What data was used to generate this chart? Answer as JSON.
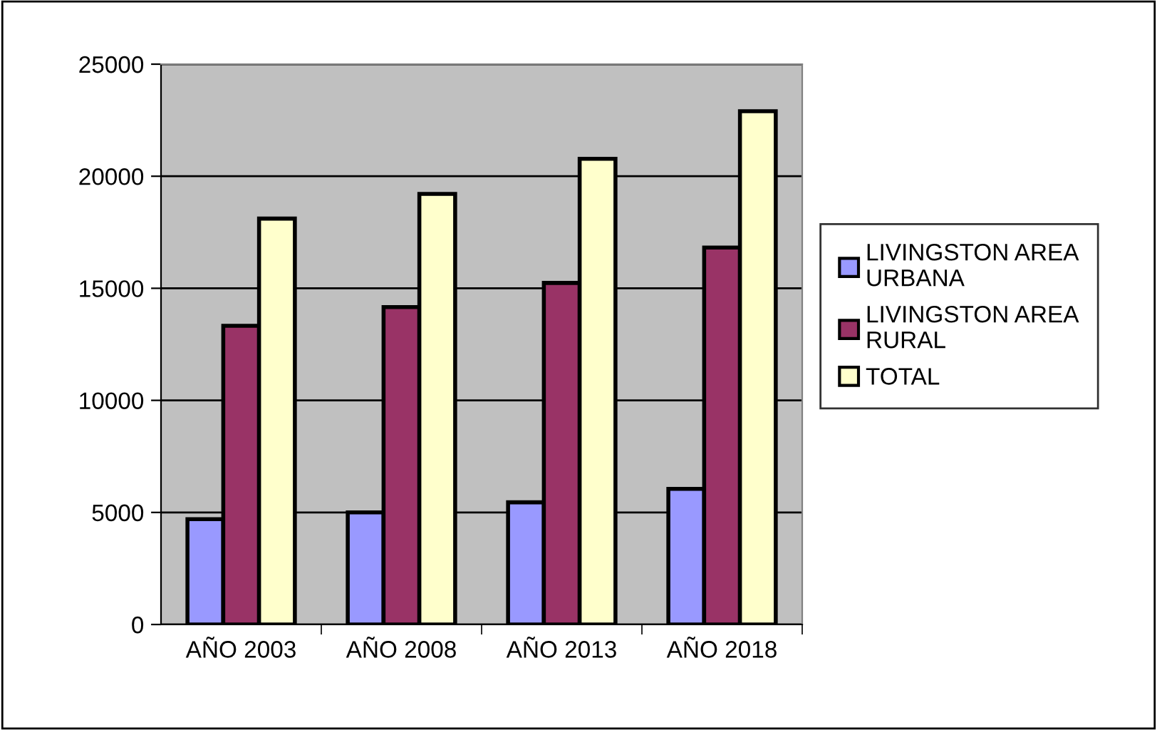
{
  "chart_data": {
    "type": "bar",
    "categories": [
      "AÑO 2003",
      "AÑO 2008",
      "AÑO 2013",
      "AÑO 2018"
    ],
    "series": [
      {
        "name": "LIVINGSTON AREA URBANA",
        "color": "#9999ff",
        "values": [
          4700,
          5000,
          5450,
          6050
        ]
      },
      {
        "name": "LIVINGSTON AREA RURAL",
        "color": "#993366",
        "values": [
          13330,
          14160,
          15240,
          16820
        ]
      },
      {
        "name": "TOTAL",
        "color": "#ffffcc",
        "values": [
          18110,
          19210,
          20780,
          22900
        ]
      }
    ],
    "ylim": [
      0,
      25000
    ],
    "yticks": [
      0,
      5000,
      10000,
      15000,
      20000,
      25000
    ],
    "grid": "y",
    "legend": "right"
  }
}
